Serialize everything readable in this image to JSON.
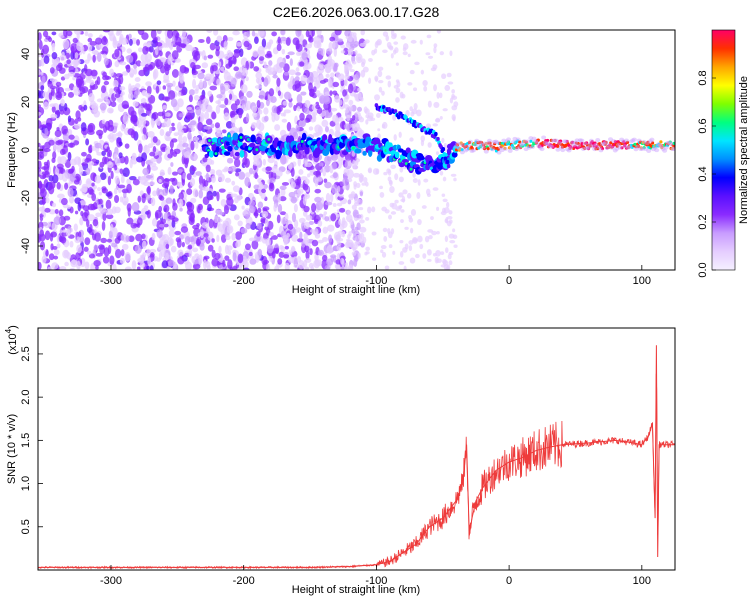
{
  "figure_title": "C2E6.2026.063.00.17.G28",
  "colors": {
    "snr_line": "#ee3b3b",
    "axis": "#000000",
    "colorscale": [
      "#f5f0ff",
      "#e5cdff",
      "#c89cff",
      "#8a2bff",
      "#5a10ff",
      "#0000ff",
      "#0090ff",
      "#00e5ff",
      "#00ff80",
      "#7fff00",
      "#ffff00",
      "#ffa500",
      "#ff3000",
      "#ff0066"
    ]
  },
  "chart_data": [
    {
      "type": "heatmap",
      "xlabel": "Height of straight line (km)",
      "ylabel": "Frequency (Hz)",
      "xlim": [
        -355,
        125
      ],
      "ylim": [
        -50,
        50
      ],
      "xticks": [
        "-300",
        "-200",
        "-100",
        "0",
        "100"
      ],
      "xtick_values": [
        -300,
        -200,
        -100,
        0,
        100
      ],
      "yticks": [
        "-40",
        "-20",
        "0",
        "20",
        "40"
      ],
      "ytick_values": [
        -40,
        -20,
        0,
        20,
        40
      ],
      "colorbar": {
        "label": "Normalized spectral amplitude",
        "range": [
          0,
          1
        ],
        "ticks": [
          "0.0",
          "0.2",
          "0.4",
          "0.6",
          "0.8"
        ],
        "tick_values": [
          0.0,
          0.2,
          0.4,
          0.6,
          0.8
        ]
      },
      "main_trace": {
        "x": [
          -230,
          -200,
          -150,
          -110,
          -90,
          -70,
          -55,
          -48,
          -40,
          -30,
          -20,
          -10,
          0,
          20,
          50,
          80,
          100,
          125
        ],
        "y": [
          1,
          2,
          2,
          2,
          -1,
          -5,
          -8,
          -4,
          1,
          2,
          2,
          1,
          2,
          3,
          2,
          2,
          2,
          2
        ]
      },
      "secondary_trace": {
        "x": [
          -100,
          -80,
          -65,
          -55,
          -50,
          -45
        ],
        "y": [
          18,
          14,
          9,
          6,
          0,
          -8
        ]
      }
    },
    {
      "type": "line",
      "xlabel": "Height of straight line (km)",
      "ylabel": "SNR (10 * v/v)",
      "y_multiplier": "(x10",
      "y_multiplier_exp": "4",
      "xlim": [
        -355,
        125
      ],
      "ylim": [
        0,
        2.8
      ],
      "xticks": [
        "-300",
        "-200",
        "-100",
        "0",
        "100"
      ],
      "xtick_values": [
        -300,
        -200,
        -100,
        0,
        100
      ],
      "yticks": [
        "0.5",
        "1.0",
        "1.5",
        "2.0",
        "2.5"
      ],
      "ytick_values": [
        0.5,
        1.0,
        1.5,
        2.0,
        2.5
      ],
      "series": [
        {
          "x": [
            -355,
            -300,
            -250,
            -200,
            -150,
            -120,
            -100,
            -90,
            -80,
            -70,
            -60,
            -50,
            -40,
            -35,
            -32,
            -30,
            -28,
            -25,
            -20,
            -15,
            -10,
            -5,
            0,
            10,
            20,
            30,
            40,
            60,
            80,
            90,
            100,
            105,
            108,
            110,
            111,
            112,
            113,
            115,
            120,
            125
          ],
          "y": [
            0.03,
            0.03,
            0.03,
            0.03,
            0.03,
            0.04,
            0.06,
            0.1,
            0.2,
            0.3,
            0.5,
            0.6,
            0.8,
            1.0,
            1.45,
            0.4,
            0.6,
            0.8,
            0.95,
            1.05,
            1.15,
            1.2,
            1.25,
            1.3,
            1.38,
            1.42,
            1.45,
            1.47,
            1.5,
            1.48,
            1.45,
            1.55,
            1.7,
            0.6,
            2.6,
            0.15,
            1.45,
            1.45,
            1.45,
            1.45
          ]
        }
      ]
    }
  ]
}
